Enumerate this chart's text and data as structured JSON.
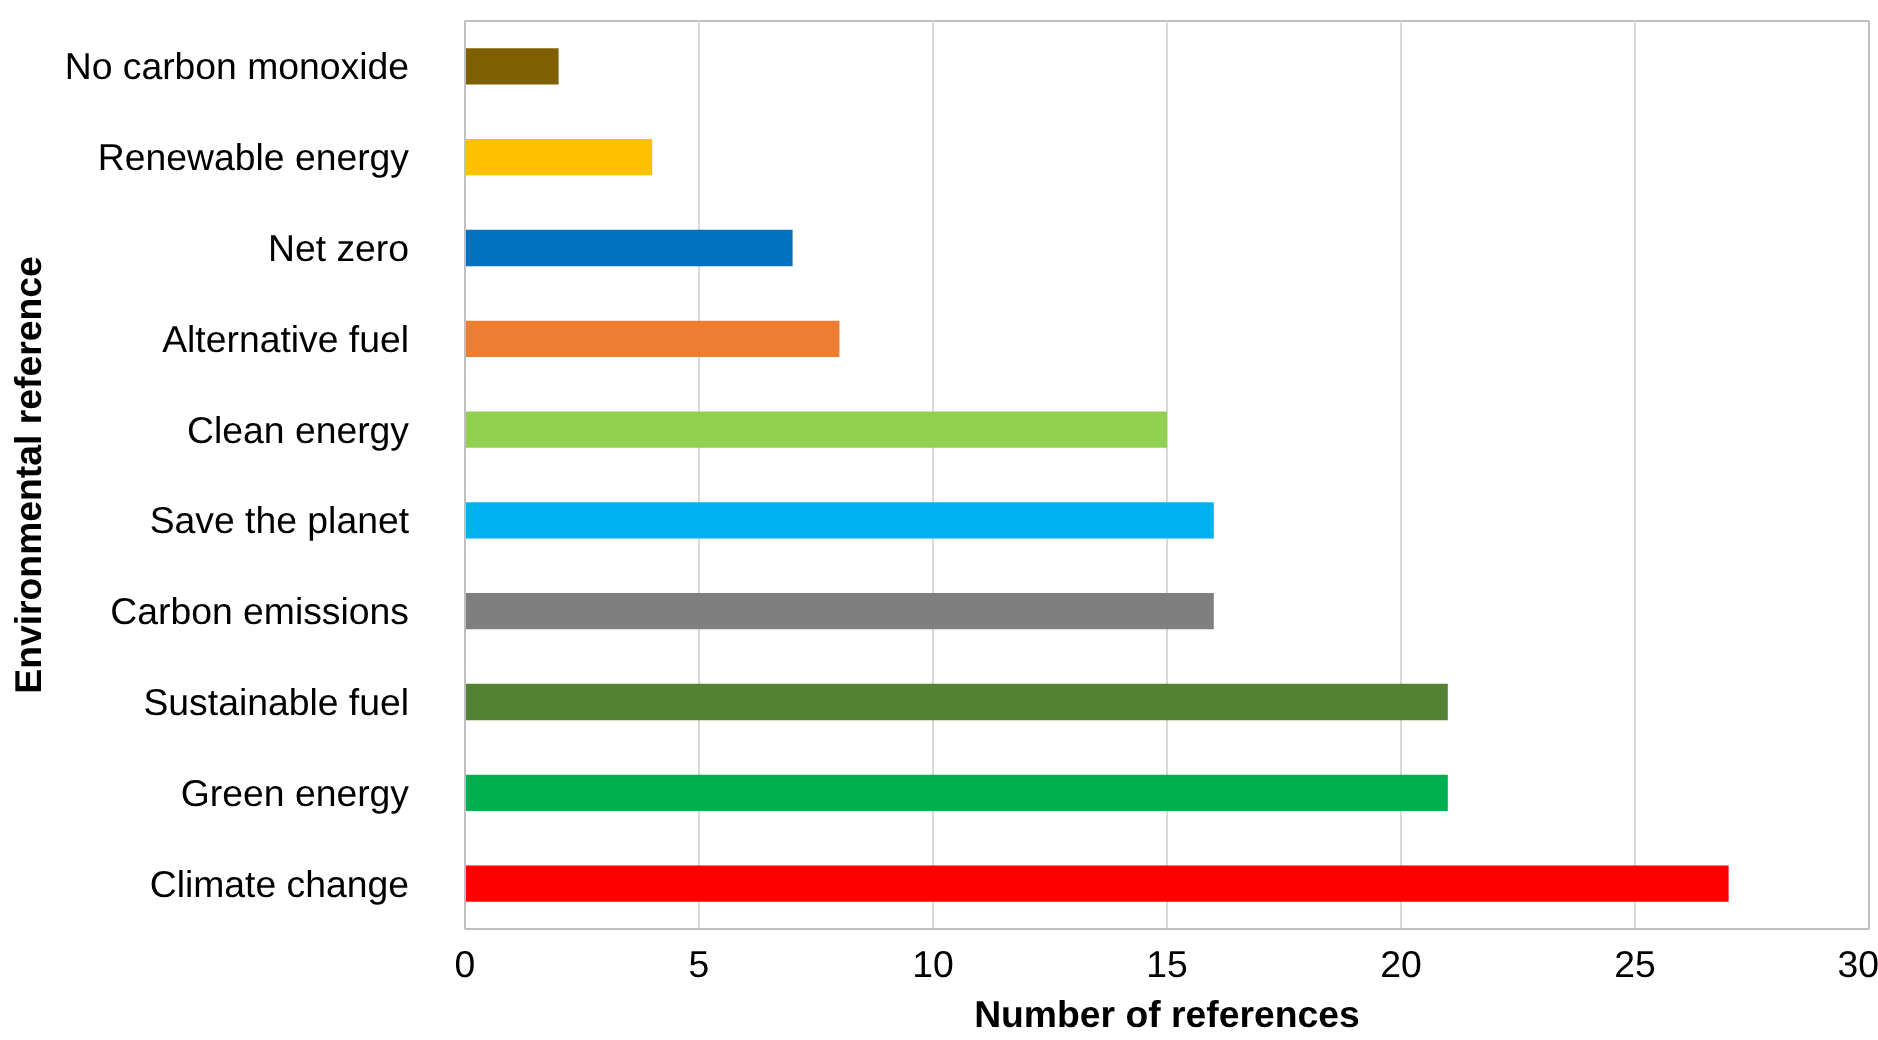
{
  "chart_data": {
    "type": "bar",
    "orientation": "horizontal",
    "xlabel": "Number of references",
    "ylabel": "Environmental reference",
    "categories": [
      "No carbon monoxide",
      "Renewable energy",
      "Net zero",
      "Alternative fuel",
      "Clean energy",
      "Save the planet",
      "Carbon emissions",
      "Sustainable fuel",
      "Green energy",
      "Climate change"
    ],
    "values": [
      2,
      4,
      7,
      8,
      15,
      16,
      16,
      21,
      21,
      27
    ],
    "colors": [
      "#7f6000",
      "#ffc000",
      "#0070c0",
      "#ed7d31",
      "#92d050",
      "#00b0f0",
      "#7f7f7f",
      "#548235",
      "#00b050",
      "#ff0000"
    ],
    "xlim": [
      0,
      30
    ],
    "xticks": [
      0,
      5,
      10,
      15,
      20,
      25,
      30
    ],
    "grid": "x"
  }
}
